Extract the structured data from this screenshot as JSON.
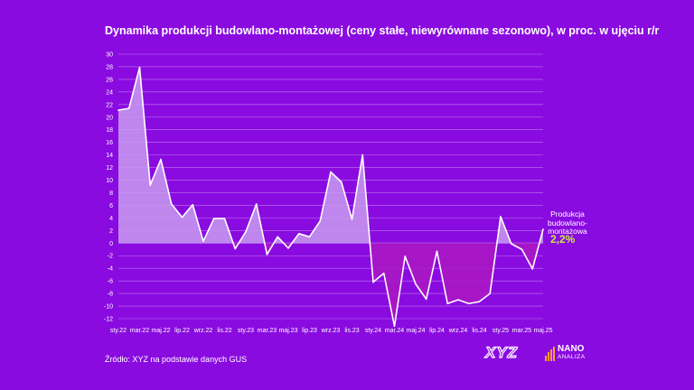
{
  "chart_data": {
    "type": "line",
    "title": "Dynamika produkcji budowlano-montażowej (ceny stałe, niewyrównane sezonowo), w proc. w ujęciu r/r",
    "xlabel": "",
    "ylabel": "",
    "ylim": [
      -14,
      30
    ],
    "yticks": [
      30,
      28,
      26,
      24,
      22,
      20,
      18,
      16,
      14,
      12,
      10,
      8,
      6,
      4,
      2,
      0,
      -2,
      -4,
      -6,
      -8,
      -10,
      -12
    ],
    "grid": true,
    "months": [
      "sty.22",
      "lut.22",
      "mar.22",
      "kwi.22",
      "maj.22",
      "cze.22",
      "lip.22",
      "sie.22",
      "wrz.22",
      "paź.22",
      "lis.22",
      "gru.22",
      "sty.23",
      "lut.23",
      "mar.23",
      "kwi.23",
      "maj.23",
      "cze.23",
      "lip.23",
      "sie.23",
      "wrz.23",
      "paź.23",
      "lis.23",
      "gru.23",
      "sty.24",
      "lut.24",
      "mar.24",
      "kwi.24",
      "maj.24",
      "cze.24",
      "lip.24",
      "sie.24",
      "wrz.24",
      "paź.24",
      "lis.24",
      "gru.24",
      "sty.25",
      "lut.25",
      "mar.25",
      "kwi.25",
      "maj.25"
    ],
    "xtick_labels": [
      "sty.22",
      "mar.22",
      "maj.22",
      "lip.22",
      "wrz.22",
      "lis.22",
      "sty.23",
      "mar.23",
      "maj.23",
      "lip.23",
      "wrz.23",
      "lis.23",
      "sty.24",
      "mar.24",
      "maj.24",
      "lip.24",
      "wrz.24",
      "lis.24",
      "sty.25",
      "mar.25",
      "maj.25"
    ],
    "series": [
      {
        "name": "Produkcja budowlano-montażowa",
        "values": [
          21.1,
          21.4,
          27.9,
          9.2,
          13.3,
          6.2,
          4.1,
          6.1,
          0.3,
          3.9,
          3.9,
          -0.9,
          1.8,
          6.2,
          -1.8,
          1.0,
          -0.8,
          1.5,
          1.0,
          3.5,
          11.3,
          9.7,
          3.8,
          14.0,
          -6.2,
          -4.8,
          -13.2,
          -2.1,
          -6.5,
          -8.9,
          -1.3,
          -9.6,
          -9.0,
          -9.6,
          -9.3,
          -8.0,
          4.2,
          -0.1,
          -1.0,
          -4.1,
          2.2
        ],
        "color": "#ffffff"
      }
    ],
    "fill_positive_color": "#c89cf0",
    "fill_negative_color": "#a817c4",
    "end_label": "Produkcja budowlano-montażowa",
    "end_label_lines": [
      "Produkcja",
      "budowlano-",
      "montażowa"
    ],
    "end_value": "2,2%"
  },
  "source": "Źródło: XYZ na podstawie danych GUS",
  "logo": {
    "xyz": "XYZ",
    "nano": "NANO",
    "analiza": "ANALIZA"
  },
  "colors": {
    "background": "#8a0be0",
    "accent": "#c9e84a",
    "logo_bars": "#ff9d2e"
  }
}
